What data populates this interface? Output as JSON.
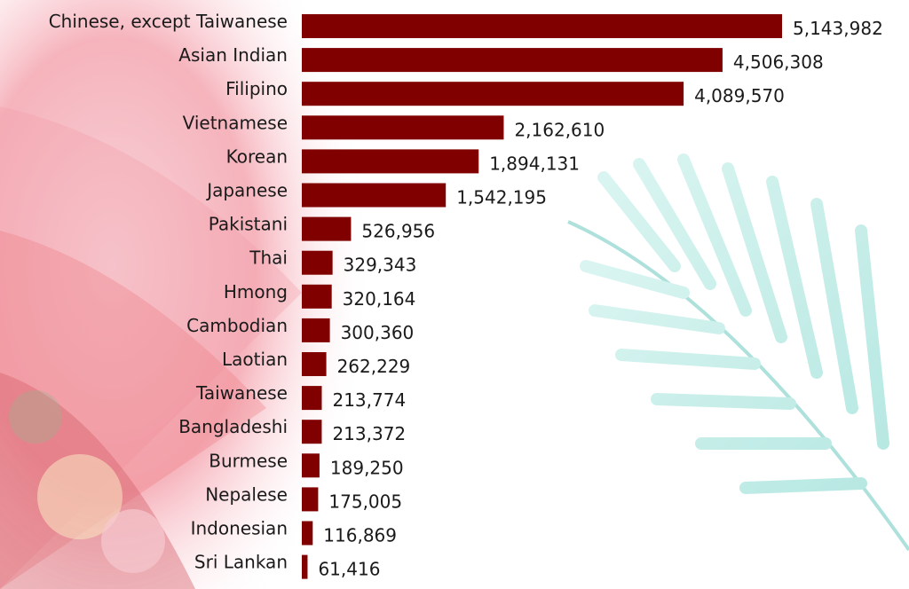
{
  "chart_data": {
    "type": "bar",
    "orientation": "horizontal",
    "categories": [
      "Chinese, except Taiwanese",
      "Asian Indian",
      "Filipino",
      "Vietnamese",
      "Korean",
      "Japanese",
      "Pakistani",
      "Thai",
      "Hmong",
      "Cambodian",
      "Laotian",
      "Taiwanese",
      "Bangladeshi",
      "Burmese",
      "Nepalese",
      "Indonesian",
      "Sri Lankan"
    ],
    "values": [
      5143982,
      4506308,
      4089570,
      2162610,
      1894131,
      1542195,
      526956,
      329343,
      320164,
      300360,
      262229,
      213774,
      213372,
      189250,
      175005,
      116869,
      61416
    ],
    "value_labels": [
      "5,143,982",
      "4,506,308",
      "4,089,570",
      "2,162,610",
      "1,894,131",
      "1,542,195",
      "526,956",
      "329,343",
      "320,164",
      "300,360",
      "262,229",
      "213,774",
      "213,372",
      "189,250",
      "175,005",
      "116,869",
      "61,416"
    ],
    "title": "",
    "xlabel": "",
    "ylabel": "",
    "legend": "none",
    "grid": false,
    "bar_color": "#800000"
  },
  "colors": {
    "bar": "#800000",
    "text": "#1a1a1a",
    "decor_pink": "#f3b6c0",
    "decor_red": "#e8505b",
    "decor_teal": "#7fd6cc"
  }
}
